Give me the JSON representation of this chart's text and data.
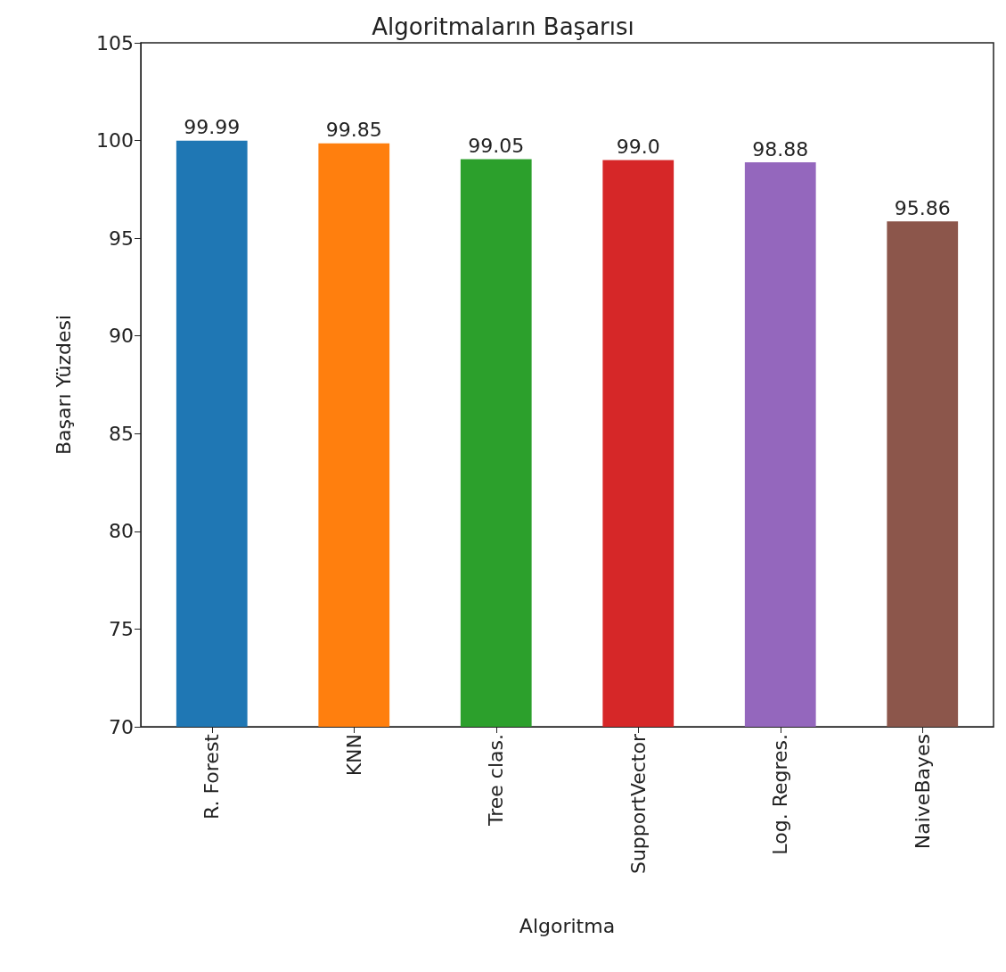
{
  "chart_data": {
    "type": "bar",
    "title": "Algoritmaların Başarısı",
    "xlabel": "Algoritma",
    "ylabel": "Başarı Yüzdesi",
    "categories": [
      "R. Forest",
      "KNN",
      "Tree clas.",
      "SupportVector",
      "Log. Regres.",
      "NaiveBayes"
    ],
    "values": [
      99.99,
      99.85,
      99.05,
      99.0,
      98.88,
      95.86
    ],
    "value_labels": [
      "99.99",
      "99.85",
      "99.05",
      "99.0",
      "98.88",
      "95.86"
    ],
    "colors": [
      "#1f77b4",
      "#ff7f0e",
      "#2ca02c",
      "#d62728",
      "#9467bd",
      "#8c564b"
    ],
    "ylim": [
      70,
      105
    ],
    "yticks": [
      70,
      75,
      80,
      85,
      90,
      95,
      100,
      105
    ]
  }
}
